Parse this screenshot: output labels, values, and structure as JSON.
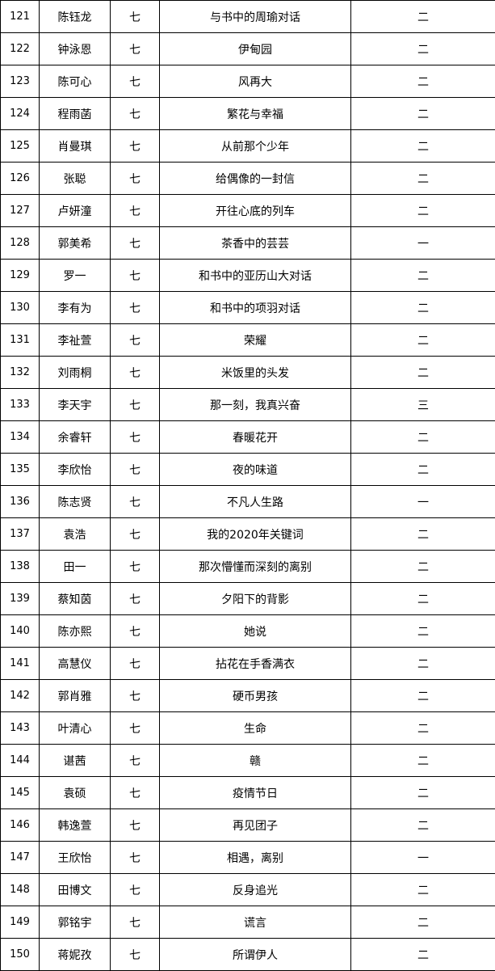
{
  "table": {
    "rows": [
      [
        "121",
        "陈钰龙",
        "七",
        "与书中的周瑜对话",
        "二"
      ],
      [
        "122",
        "钟泳恩",
        "七",
        "伊甸园",
        "二"
      ],
      [
        "123",
        "陈可心",
        "七",
        "风再大",
        "二"
      ],
      [
        "124",
        "程雨菡",
        "七",
        "繁花与幸福",
        "二"
      ],
      [
        "125",
        "肖曼琪",
        "七",
        "从前那个少年",
        "二"
      ],
      [
        "126",
        "张聪",
        "七",
        "给偶像的一封信",
        "二"
      ],
      [
        "127",
        "卢妍潼",
        "七",
        "开往心底的列车",
        "二"
      ],
      [
        "128",
        "郭美希",
        "七",
        "茶香中的芸芸",
        "一"
      ],
      [
        "129",
        "罗一",
        "七",
        "和书中的亚历山大对话",
        "二"
      ],
      [
        "130",
        "李有为",
        "七",
        "和书中的项羽对话",
        "二"
      ],
      [
        "131",
        "李祉萱",
        "七",
        "荣耀",
        "二"
      ],
      [
        "132",
        "刘雨桐",
        "七",
        "米饭里的头发",
        "二"
      ],
      [
        "133",
        "李天宇",
        "七",
        "那一刻，我真兴奋",
        "三"
      ],
      [
        "134",
        "余睿轩",
        "七",
        "春暖花开",
        "二"
      ],
      [
        "135",
        "李欣怡",
        "七",
        "夜的味道",
        "二"
      ],
      [
        "136",
        "陈志贤",
        "七",
        "不凡人生路",
        "一"
      ],
      [
        "137",
        "袁浩",
        "七",
        "我的2020年关键词",
        "二"
      ],
      [
        "138",
        "田一",
        "七",
        "那次懵懂而深刻的离别",
        "二"
      ],
      [
        "139",
        "蔡知茵",
        "七",
        "夕阳下的背影",
        "二"
      ],
      [
        "140",
        "陈亦熙",
        "七",
        "她说",
        "二"
      ],
      [
        "141",
        "高慧仪",
        "七",
        "拈花在手香满衣",
        "二"
      ],
      [
        "142",
        "郭肖雅",
        "七",
        "硬币男孩",
        "二"
      ],
      [
        "143",
        "叶清心",
        "七",
        "生命",
        "二"
      ],
      [
        "144",
        "谌茜",
        "七",
        "赣",
        "二"
      ],
      [
        "145",
        "袁硕",
        "七",
        "疫情节日",
        "二"
      ],
      [
        "146",
        "韩逸萱",
        "七",
        "再见团子",
        "二"
      ],
      [
        "147",
        "王欣怡",
        "七",
        "相遇，离别",
        "一"
      ],
      [
        "148",
        "田博文",
        "七",
        "反身追光",
        "二"
      ],
      [
        "149",
        "郭铭宇",
        "七",
        "谎言",
        "二"
      ],
      [
        "150",
        "蒋妮孜",
        "七",
        "所谓伊人",
        "二"
      ]
    ]
  }
}
